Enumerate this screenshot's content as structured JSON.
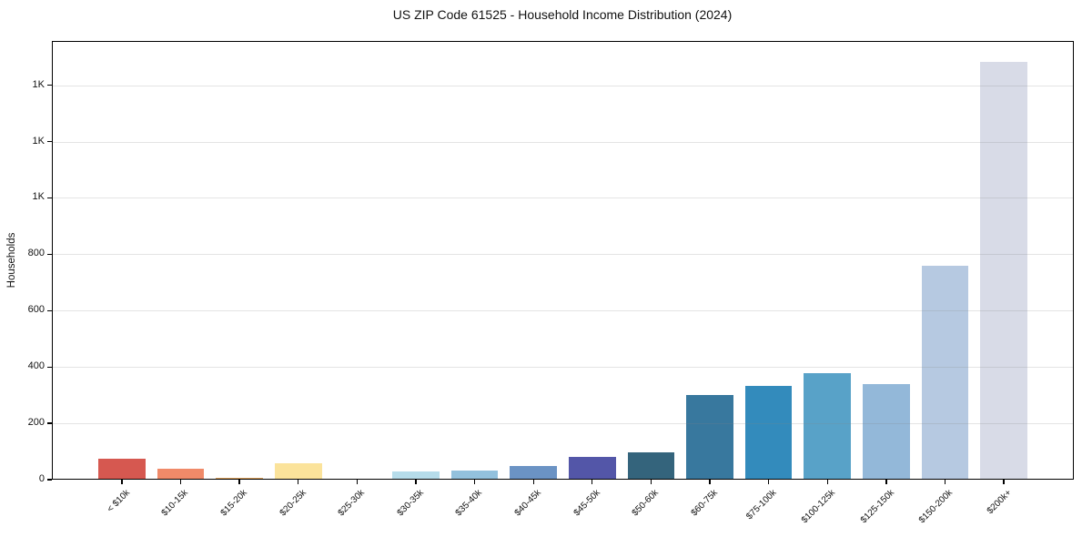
{
  "chart_data": {
    "type": "bar",
    "title": "US ZIP Code 61525 - Household Income Distribution (2024)",
    "xlabel": "",
    "ylabel": "Households",
    "categories": [
      "< $10k",
      "$10-15k",
      "$15-20k",
      "$20-25k",
      "$25-30k",
      "$30-35k",
      "$35-40k",
      "$40-45k",
      "$45-50k",
      "$50-60k",
      "$60-75k",
      "$75-100k",
      "$100-125k",
      "$125-150k",
      "$150-200k",
      "$200k+"
    ],
    "values": [
      75,
      40,
      8,
      58,
      4,
      29,
      32,
      50,
      81,
      97,
      302,
      333,
      378,
      339,
      760,
      1483
    ],
    "bar_colors": [
      "#d65850",
      "#f08a69",
      "#dda25c",
      "#fbe39b",
      "#faf0ce",
      "#b6dcea",
      "#93c1dd",
      "#6b93c4",
      "#5356a8",
      "#34647c",
      "#38789e",
      "#338bbc",
      "#58a2c8",
      "#93b8d9",
      "#b6c9e1",
      "#d8dbe7"
    ],
    "ylim": [
      0,
      1557
    ],
    "yticks": {
      "values": [
        0,
        200,
        400,
        600,
        800,
        1000,
        1200,
        1400
      ],
      "labels": [
        "0",
        "200",
        "400",
        "600",
        "800",
        "1K",
        "1K",
        "1K"
      ]
    },
    "grid": "horizontal",
    "legend": "none",
    "background": "#ffffff",
    "spine_color": "#000000"
  }
}
